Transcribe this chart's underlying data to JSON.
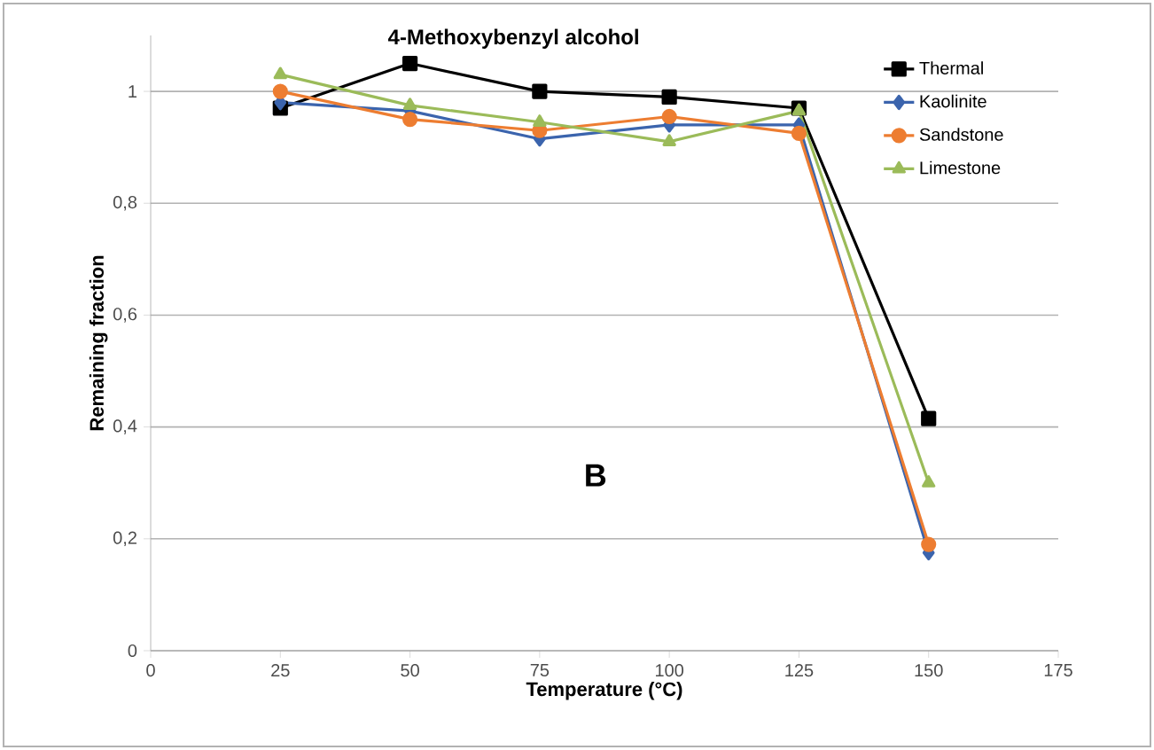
{
  "chart_data": {
    "type": "line",
    "title": "4-Methoxybenzyl alcohol",
    "xlabel": "Temperature (°C)",
    "ylabel": "Remaining fraction",
    "x": [
      25,
      50,
      75,
      100,
      125,
      150
    ],
    "series": [
      {
        "name": "Thermal",
        "color": "#000000",
        "marker": "square",
        "values": [
          0.97,
          1.05,
          1.0,
          0.99,
          0.97,
          0.415
        ]
      },
      {
        "name": "Kaolinite",
        "color": "#3b64ad",
        "marker": "diamond",
        "values": [
          0.98,
          0.965,
          0.915,
          0.94,
          0.94,
          0.175
        ]
      },
      {
        "name": "Sandstone",
        "color": "#ed7d31",
        "marker": "circle",
        "values": [
          1.0,
          0.95,
          0.93,
          0.955,
          0.925,
          0.19
        ]
      },
      {
        "name": "Limestone",
        "color": "#9bbb59",
        "marker": "triangle",
        "values": [
          1.03,
          0.975,
          0.945,
          0.91,
          0.965,
          0.3
        ]
      }
    ],
    "annotations": [
      "B"
    ],
    "xlim": [
      0,
      175
    ],
    "xticks": [
      0,
      25,
      50,
      75,
      100,
      125,
      150,
      175
    ],
    "ylim": [
      0,
      1.1
    ],
    "yticks": [
      0,
      {
        "value": 0.2,
        "label": "0,2"
      },
      {
        "value": 0.4,
        "label": "0,4"
      },
      {
        "value": 0.6,
        "label": "0,6"
      },
      {
        "value": 0.8,
        "label": "0,8"
      },
      1
    ],
    "grid": "y",
    "legend": "top right",
    "line_style": "solid"
  }
}
